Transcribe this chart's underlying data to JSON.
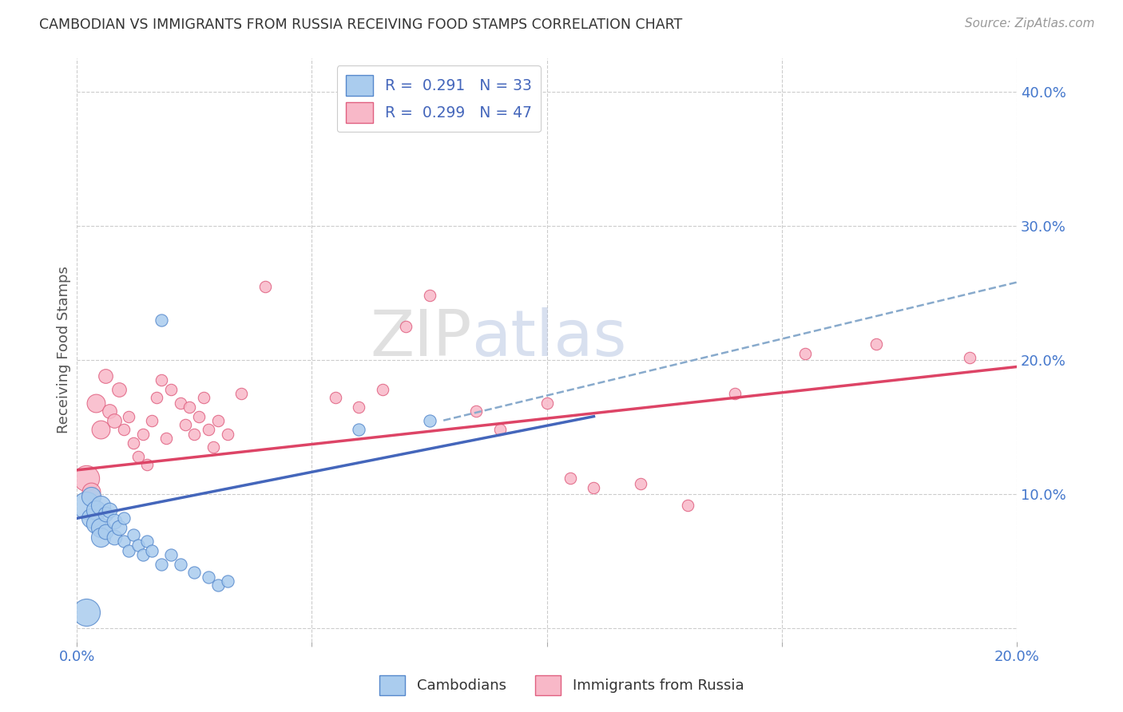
{
  "title": "CAMBODIAN VS IMMIGRANTS FROM RUSSIA RECEIVING FOOD STAMPS CORRELATION CHART",
  "source": "Source: ZipAtlas.com",
  "ylabel": "Receiving Food Stamps",
  "legend_blue_label": "Cambodians",
  "legend_pink_label": "Immigrants from Russia",
  "xlim": [
    0.0,
    0.2
  ],
  "ylim": [
    -0.01,
    0.425
  ],
  "yticks": [
    0.0,
    0.1,
    0.2,
    0.3,
    0.4
  ],
  "ytick_labels": [
    "",
    "10.0%",
    "20.0%",
    "30.0%",
    "40.0%"
  ],
  "xticks": [
    0.0,
    0.05,
    0.1,
    0.15,
    0.2
  ],
  "xtick_labels": [
    "0.0%",
    "",
    "",
    "",
    "20.0%"
  ],
  "blue_fill": "#aaccee",
  "blue_edge": "#5588cc",
  "pink_fill": "#f8b8c8",
  "pink_edge": "#e06080",
  "blue_line_color": "#4466bb",
  "pink_line_color": "#dd4466",
  "dashed_line_color": "#88aacc",
  "watermark_zip": "ZIP",
  "watermark_atlas": "atlas",
  "blue_dots": [
    [
      0.002,
      0.092
    ],
    [
      0.003,
      0.098
    ],
    [
      0.003,
      0.082
    ],
    [
      0.004,
      0.088
    ],
    [
      0.004,
      0.078
    ],
    [
      0.005,
      0.092
    ],
    [
      0.005,
      0.075
    ],
    [
      0.005,
      0.068
    ],
    [
      0.006,
      0.085
    ],
    [
      0.006,
      0.072
    ],
    [
      0.007,
      0.088
    ],
    [
      0.008,
      0.08
    ],
    [
      0.008,
      0.068
    ],
    [
      0.009,
      0.075
    ],
    [
      0.01,
      0.082
    ],
    [
      0.01,
      0.065
    ],
    [
      0.011,
      0.058
    ],
    [
      0.012,
      0.07
    ],
    [
      0.013,
      0.062
    ],
    [
      0.014,
      0.055
    ],
    [
      0.015,
      0.065
    ],
    [
      0.016,
      0.058
    ],
    [
      0.018,
      0.048
    ],
    [
      0.02,
      0.055
    ],
    [
      0.022,
      0.048
    ],
    [
      0.025,
      0.042
    ],
    [
      0.028,
      0.038
    ],
    [
      0.03,
      0.032
    ],
    [
      0.032,
      0.035
    ],
    [
      0.002,
      0.012
    ],
    [
      0.018,
      0.23
    ],
    [
      0.06,
      0.148
    ],
    [
      0.075,
      0.155
    ]
  ],
  "pink_dots": [
    [
      0.002,
      0.112
    ],
    [
      0.003,
      0.102
    ],
    [
      0.004,
      0.168
    ],
    [
      0.005,
      0.148
    ],
    [
      0.006,
      0.188
    ],
    [
      0.007,
      0.162
    ],
    [
      0.008,
      0.155
    ],
    [
      0.009,
      0.178
    ],
    [
      0.01,
      0.148
    ],
    [
      0.011,
      0.158
    ],
    [
      0.012,
      0.138
    ],
    [
      0.013,
      0.128
    ],
    [
      0.014,
      0.145
    ],
    [
      0.015,
      0.122
    ],
    [
      0.016,
      0.155
    ],
    [
      0.017,
      0.172
    ],
    [
      0.018,
      0.185
    ],
    [
      0.019,
      0.142
    ],
    [
      0.02,
      0.178
    ],
    [
      0.022,
      0.168
    ],
    [
      0.023,
      0.152
    ],
    [
      0.024,
      0.165
    ],
    [
      0.025,
      0.145
    ],
    [
      0.026,
      0.158
    ],
    [
      0.027,
      0.172
    ],
    [
      0.028,
      0.148
    ],
    [
      0.029,
      0.135
    ],
    [
      0.03,
      0.155
    ],
    [
      0.032,
      0.145
    ],
    [
      0.035,
      0.175
    ],
    [
      0.04,
      0.255
    ],
    [
      0.055,
      0.172
    ],
    [
      0.06,
      0.165
    ],
    [
      0.065,
      0.178
    ],
    [
      0.07,
      0.225
    ],
    [
      0.075,
      0.248
    ],
    [
      0.085,
      0.162
    ],
    [
      0.09,
      0.148
    ],
    [
      0.1,
      0.168
    ],
    [
      0.105,
      0.112
    ],
    [
      0.11,
      0.105
    ],
    [
      0.12,
      0.108
    ],
    [
      0.13,
      0.092
    ],
    [
      0.14,
      0.175
    ],
    [
      0.155,
      0.205
    ],
    [
      0.17,
      0.212
    ],
    [
      0.19,
      0.202
    ]
  ],
  "blue_trendline": [
    [
      0.0,
      0.082
    ],
    [
      0.11,
      0.158
    ]
  ],
  "pink_trendline": [
    [
      0.0,
      0.118
    ],
    [
      0.2,
      0.195
    ]
  ],
  "dashed_trendline": [
    [
      0.078,
      0.155
    ],
    [
      0.2,
      0.258
    ]
  ]
}
